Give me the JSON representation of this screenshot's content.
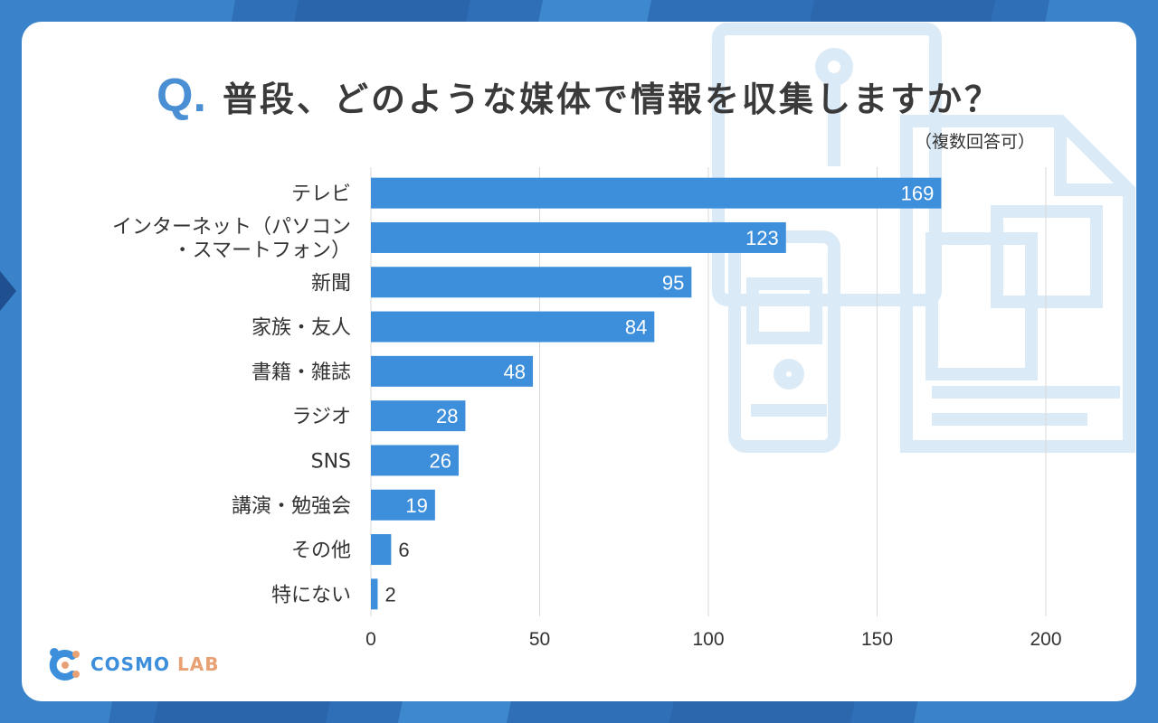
{
  "header": {
    "q_mark": "Q.",
    "title": "普段、どのような媒体で情報を収集しますか？",
    "note": "（複数回答可）"
  },
  "colors": {
    "background": "#2f6fb8",
    "bar": "#3d8fdc",
    "accent": "#4a8fd3",
    "watermark": "#dbeaf7",
    "logo_blue": "#3d8fdc",
    "logo_orange": "#e8a174"
  },
  "chart_data": {
    "type": "bar",
    "orientation": "horizontal",
    "title": "普段、どのような媒体で情報を収集しますか？",
    "categories": [
      [
        "テレビ"
      ],
      [
        "インターネット（パソコン",
        "・スマートフォン）"
      ],
      [
        "新聞"
      ],
      [
        "家族・友人"
      ],
      [
        "書籍・雑誌"
      ],
      [
        "ラジオ"
      ],
      [
        "SNS"
      ],
      [
        "講演・勉強会"
      ],
      [
        "その他"
      ],
      [
        "特にない"
      ]
    ],
    "values": [
      169,
      123,
      95,
      84,
      48,
      28,
      26,
      19,
      6,
      2
    ],
    "xlim": [
      0,
      200
    ],
    "xticks": [
      0,
      50,
      100,
      150,
      200
    ],
    "grid": true,
    "xlabel": "",
    "ylabel": ""
  },
  "logo": {
    "brand": "COSMO",
    "suffix": "LAB",
    "icon": "molecule-c-icon"
  }
}
